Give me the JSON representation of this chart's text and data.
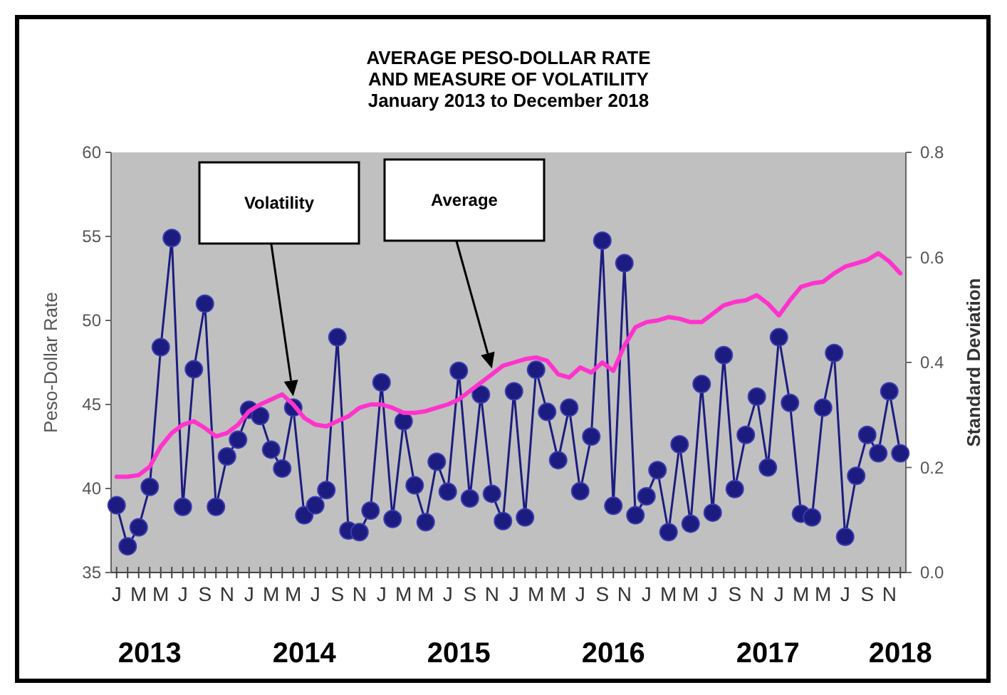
{
  "chart_data": {
    "type": "line",
    "title": "AVERAGE PESO-DOLLAR RATE\nAND MEASURE OF VOLATILITY",
    "subtitle": "January 2013 to December 2018",
    "ylabel": "Peso-Dollar Rate",
    "y2label": "Standard Deviation",
    "categories": [
      "J",
      null,
      "M",
      null,
      "M",
      null,
      "J",
      null,
      "S",
      null,
      "N",
      null,
      "J",
      null,
      "M",
      null,
      "M",
      null,
      "J",
      null,
      "S",
      null,
      "N",
      null,
      "J",
      null,
      "M",
      null,
      "M",
      null,
      "J",
      null,
      "S",
      null,
      "N",
      null,
      "J",
      null,
      "M",
      null,
      "M",
      null,
      "J",
      null,
      "S",
      null,
      "N",
      null,
      "J",
      null,
      "M",
      null,
      "M",
      null,
      "J",
      null,
      "S",
      null,
      "N",
      null,
      "J",
      null,
      "M",
      null,
      "M",
      null,
      "J",
      null,
      "S",
      null,
      "N",
      null
    ],
    "ylim": [
      35,
      60
    ],
    "yticks": [
      35,
      40,
      45,
      50,
      55,
      60
    ],
    "y2lim": [
      0,
      0.8
    ],
    "y2ticks": [
      {
        "value": 0,
        "label": "0.0"
      },
      {
        "value": 0.2,
        "label": "0.2"
      },
      {
        "value": 0.4,
        "label": "0.4"
      },
      {
        "value": 0.6,
        "label": "0.6"
      },
      {
        "value": 0.8,
        "label": "0.8"
      }
    ],
    "grid": false,
    "series": [
      {
        "color": "#1c1c80",
        "axis": "y2",
        "marker": "circle",
        "values": [
          0.128,
          0.05,
          0.086,
          0.163,
          0.429,
          0.637,
          0.125,
          0.387,
          0.512,
          0.125,
          0.221,
          0.253,
          0.31,
          0.298,
          0.234,
          0.198,
          0.314,
          0.109,
          0.128,
          0.157,
          0.448,
          0.08,
          0.077,
          0.118,
          0.362,
          0.102,
          0.288,
          0.166,
          0.096,
          0.211,
          0.154,
          0.384,
          0.141,
          0.339,
          0.15,
          0.098,
          0.345,
          0.105,
          0.386,
          0.306,
          0.214,
          0.314,
          0.155,
          0.259,
          0.632,
          0.127,
          0.589,
          0.109,
          0.145,
          0.195,
          0.077,
          0.244,
          0.093,
          0.359,
          0.114,
          0.414,
          0.159,
          0.262,
          0.335,
          0.2,
          0.448,
          0.323,
          0.112,
          0.105,
          0.314,
          0.418,
          0.068,
          0.184,
          0.262,
          0.227,
          0.345,
          0.227
        ]
      },
      {
        "color": "#ff33cc",
        "axis": "y",
        "marker": "none",
        "values": [
          40.7,
          40.7,
          40.8,
          41.3,
          42.5,
          43.3,
          43.8,
          44.0,
          43.6,
          43.1,
          43.3,
          43.8,
          44.6,
          45.0,
          45.3,
          45.6,
          45.0,
          44.2,
          43.8,
          43.7,
          44.0,
          44.3,
          44.8,
          45.0,
          45.0,
          44.8,
          44.5,
          44.5,
          44.6,
          44.8,
          45.0,
          45.3,
          45.8,
          46.3,
          46.8,
          47.3,
          47.5,
          47.7,
          47.8,
          47.6,
          46.8,
          46.6,
          47.2,
          46.9,
          47.5,
          47.0,
          48.5,
          49.6,
          49.9,
          50.0,
          50.2,
          50.1,
          49.9,
          49.9,
          50.4,
          50.9,
          51.1,
          51.2,
          51.5,
          51.0,
          50.3,
          51.2,
          52.0,
          52.2,
          52.3,
          52.8,
          53.2,
          53.4,
          53.6,
          54.0,
          53.5,
          52.8
        ]
      }
    ],
    "annotations": [
      "Volatility",
      "Average",
      "2013",
      "2014",
      "2015",
      "2016",
      "2017",
      "2018"
    ]
  }
}
